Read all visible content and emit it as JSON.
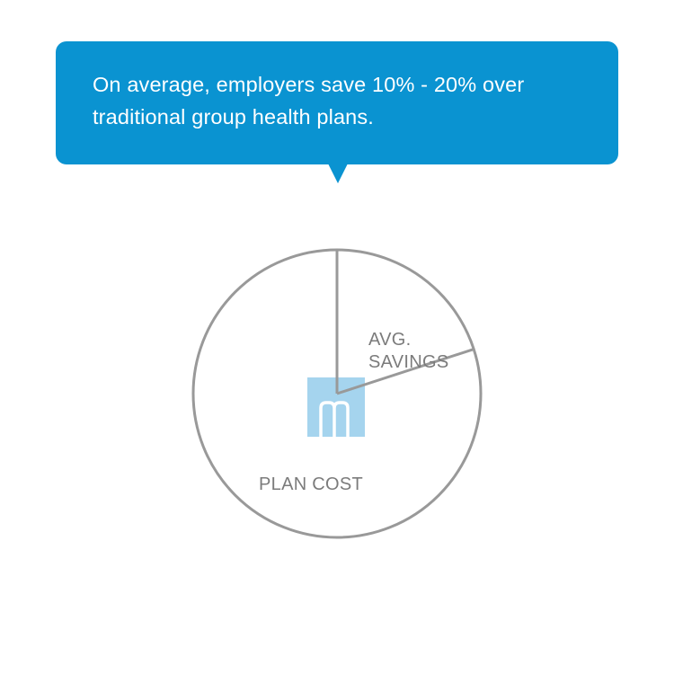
{
  "callout": {
    "text_line_1": "On average, employers save 10% - 20% over",
    "text_line_2": "traditional group health plans.",
    "background_color": "#0a93d1",
    "text_color": "#ffffff"
  },
  "chart_data": {
    "type": "pie",
    "title": "",
    "slices": [
      {
        "label": [
          "AVG.",
          "SAVINGS"
        ],
        "value": 20
      },
      {
        "label": [
          "PLAN COST"
        ],
        "value": 80
      }
    ],
    "start_angle_deg": 0,
    "direction": "clockwise",
    "stroke_color": "#999999",
    "label_color": "#7b7b7b",
    "fill_color": "#ffffff"
  },
  "logo": {
    "letter": "m",
    "icon": "company-logo-m-icon",
    "background_color": "#a5d4ee"
  }
}
